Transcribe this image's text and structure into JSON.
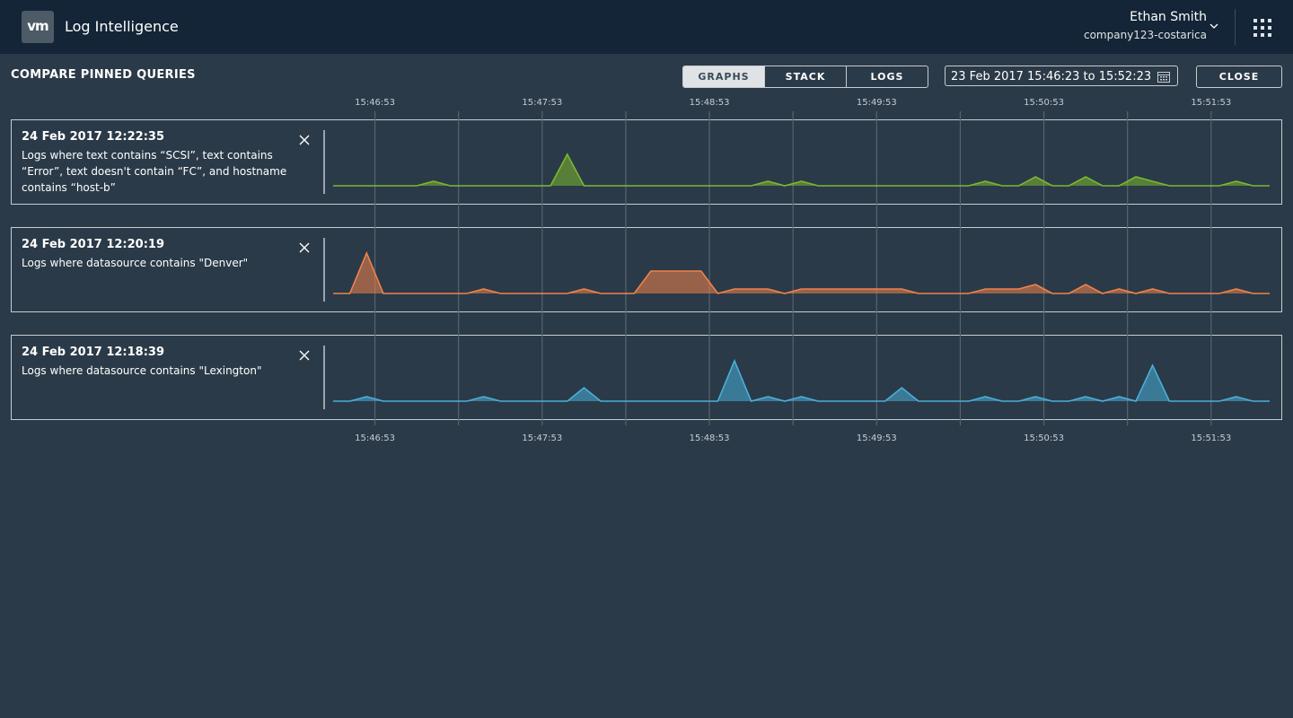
{
  "header": {
    "logo": "vm",
    "app": "Log Intelligence",
    "user": "Ethan Smith",
    "org": "company123-costarica"
  },
  "toolbar": {
    "title": "COMPARE PINNED QUERIES",
    "tabs": [
      "GRAPHS",
      "STACK",
      "LOGS"
    ],
    "active_tab": 0,
    "range": "23 Feb 2017 15:46:23 to 15:52:23",
    "close": "CLOSE"
  },
  "chart_data": {
    "type": "area",
    "x": [
      "15:46:38",
      "15:46:44",
      "15:46:50",
      "15:46:56",
      "15:47:02",
      "15:47:08",
      "15:47:14",
      "15:47:20",
      "15:47:26",
      "15:47:32",
      "15:47:38",
      "15:47:44",
      "15:47:50",
      "15:47:56",
      "15:48:02",
      "15:48:08",
      "15:48:14",
      "15:48:20",
      "15:48:26",
      "15:48:32",
      "15:48:38",
      "15:48:44",
      "15:48:50",
      "15:48:56",
      "15:49:02",
      "15:49:08",
      "15:49:14",
      "15:49:20",
      "15:49:26",
      "15:49:32",
      "15:49:38",
      "15:49:44",
      "15:49:50",
      "15:49:56",
      "15:50:02",
      "15:50:08",
      "15:50:14",
      "15:50:20",
      "15:50:26",
      "15:50:32",
      "15:50:38",
      "15:50:44",
      "15:50:50",
      "15:50:56",
      "15:51:02",
      "15:51:08",
      "15:51:14",
      "15:51:20",
      "15:51:26",
      "15:51:32",
      "15:51:38",
      "15:51:44",
      "15:51:50",
      "15:51:56",
      "15:52:02",
      "15:52:08",
      "15:52:14"
    ],
    "xlim": [
      "15:46:38",
      "15:52:14"
    ],
    "xticks": [
      "15:46:53",
      "15:47:53",
      "15:48:53",
      "15:49:53",
      "15:50:53",
      "15:51:53"
    ],
    "xminor": [
      "15:47:23",
      "15:48:23",
      "15:49:23",
      "15:50:23",
      "15:51:23"
    ],
    "ylim": [
      0,
      12
    ],
    "panels": [
      {
        "title": "24 Feb 2017 12:22:35",
        "subtitle": "Logs where text contains “SCSI”, text contains “Error”, text doesn't contain “FC”, and hostname contains “host-b”",
        "color": "#7cb82f",
        "values": [
          0,
          0,
          0,
          0,
          0,
          0,
          1,
          0,
          0,
          0,
          0,
          0,
          0,
          0,
          7,
          0,
          0,
          0,
          0,
          0,
          0,
          0,
          0,
          0,
          0,
          0,
          1,
          0,
          1,
          0,
          0,
          0,
          0,
          0,
          0,
          0,
          0,
          0,
          0,
          1,
          0,
          0,
          2,
          0,
          0,
          2,
          0,
          0,
          2,
          1,
          0,
          0,
          0,
          0,
          1,
          0,
          0
        ]
      },
      {
        "title": "24 Feb 2017 12:20:19",
        "subtitle": "Logs where datasource contains \"Denver\"",
        "color": "#f0834a",
        "values": [
          0,
          0,
          9,
          0,
          0,
          0,
          0,
          0,
          0,
          1,
          0,
          0,
          0,
          0,
          0,
          1,
          0,
          0,
          0,
          5,
          5,
          5,
          5,
          0,
          1,
          1,
          1,
          0,
          1,
          1,
          1,
          1,
          1,
          1,
          1,
          0,
          0,
          0,
          0,
          1,
          1,
          1,
          2,
          0,
          0,
          2,
          0,
          1,
          0,
          1,
          0,
          0,
          0,
          0,
          1,
          0,
          0
        ]
      },
      {
        "title": "24 Feb 2017 12:18:39",
        "subtitle": "Logs where datasource contains \"Lexington\"",
        "color": "#49afd9",
        "values": [
          0,
          0,
          1,
          0,
          0,
          0,
          0,
          0,
          0,
          1,
          0,
          0,
          0,
          0,
          0,
          3,
          0,
          0,
          0,
          0,
          0,
          0,
          0,
          0,
          9,
          0,
          1,
          0,
          1,
          0,
          0,
          0,
          0,
          0,
          3,
          0,
          0,
          0,
          0,
          1,
          0,
          0,
          1,
          0,
          0,
          1,
          0,
          1,
          0,
          8,
          0,
          0,
          0,
          0,
          1,
          0,
          0
        ]
      }
    ]
  }
}
